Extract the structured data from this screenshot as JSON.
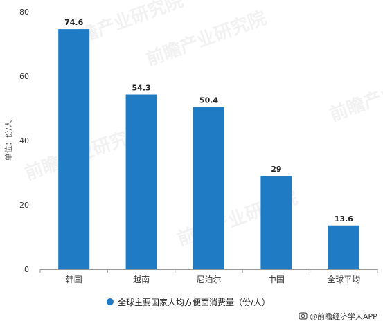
{
  "chart_data": {
    "type": "bar",
    "categories": [
      "韩国",
      "越南",
      "尼泊尔",
      "中国",
      "全球平均"
    ],
    "series": [
      {
        "name": "全球主要国家人均方便面消费量（份/人）",
        "values": [
          74.6,
          54.3,
          50.4,
          29,
          13.6
        ],
        "data_labels": [
          "74.6",
          "54.3",
          "50.4",
          "29",
          "13.6"
        ],
        "color": "#1f7bc4"
      }
    ],
    "ylabel": "单位：份/人",
    "ylim": [
      0,
      80
    ],
    "yticks": [
      0,
      20,
      40,
      60,
      80
    ],
    "grid": false,
    "legend_position": "bottom"
  },
  "legend": {
    "label": "全球主要国家人均方便面消费量（份/人）"
  },
  "credit": {
    "text": "@前瞻经济学人APP"
  },
  "watermark": {
    "text": "前瞻产业研究院"
  },
  "colors": {
    "bar": "#1f7bc4",
    "axis": "#999999",
    "text": "#333333"
  }
}
